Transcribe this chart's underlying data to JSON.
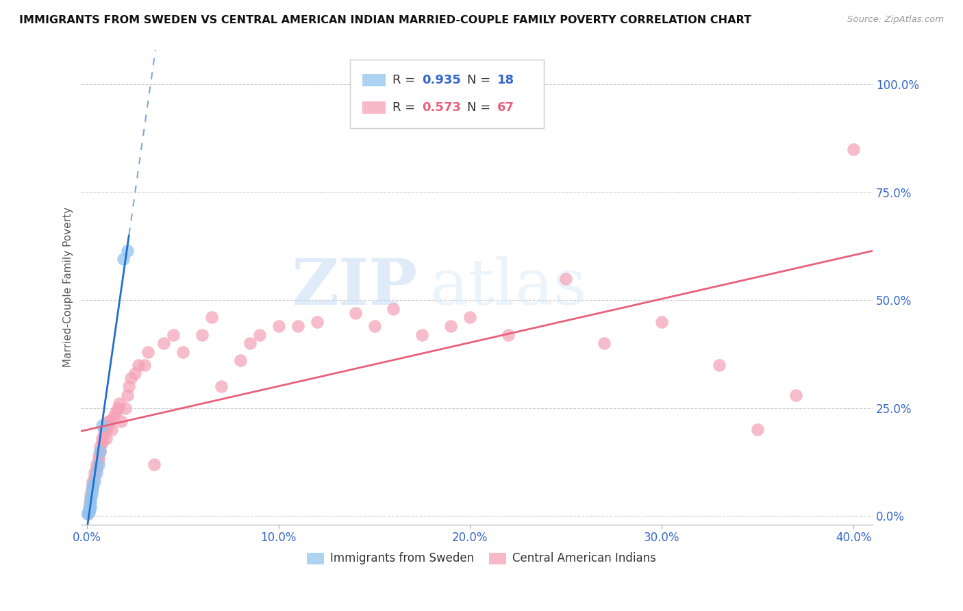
{
  "title": "IMMIGRANTS FROM SWEDEN VS CENTRAL AMERICAN INDIAN MARRIED-COUPLE FAMILY POVERTY CORRELATION CHART",
  "source": "Source: ZipAtlas.com",
  "xlabel_ticks": [
    "0.0%",
    "10.0%",
    "20.0%",
    "30.0%",
    "40.0%"
  ],
  "xlabel_tick_vals": [
    0.0,
    0.1,
    0.2,
    0.3,
    0.4
  ],
  "ylabel": "Married-Couple Family Poverty",
  "ylabel_ticks": [
    "0.0%",
    "25.0%",
    "50.0%",
    "75.0%",
    "100.0%"
  ],
  "ylabel_tick_vals": [
    0.0,
    0.25,
    0.5,
    0.75,
    1.0
  ],
  "xlim": [
    -0.003,
    0.41
  ],
  "ylim": [
    -0.02,
    1.08
  ],
  "blue_R": 0.935,
  "blue_N": 18,
  "pink_R": 0.573,
  "pink_N": 67,
  "legend_label_blue": "Immigrants from Sweden",
  "legend_label_pink": "Central American Indians",
  "blue_color": "#92C5F0",
  "pink_color": "#F5A0B5",
  "blue_line_color": "#1E6FCC",
  "pink_line_color": "#E8607A",
  "watermark_zip": "ZIP",
  "watermark_atlas": "atlas",
  "blue_x": [
    0.0005,
    0.0008,
    0.001,
    0.0012,
    0.0015,
    0.0018,
    0.002,
    0.002,
    0.0025,
    0.003,
    0.003,
    0.004,
    0.005,
    0.006,
    0.007,
    0.008,
    0.019,
    0.021
  ],
  "blue_y": [
    0.005,
    0.01,
    0.01,
    0.015,
    0.02,
    0.02,
    0.03,
    0.04,
    0.05,
    0.06,
    0.07,
    0.08,
    0.1,
    0.12,
    0.15,
    0.21,
    0.595,
    0.615
  ],
  "pink_x": [
    0.0005,
    0.001,
    0.001,
    0.0015,
    0.002,
    0.002,
    0.0025,
    0.003,
    0.003,
    0.004,
    0.004,
    0.005,
    0.005,
    0.006,
    0.006,
    0.007,
    0.007,
    0.008,
    0.008,
    0.009,
    0.009,
    0.01,
    0.01,
    0.011,
    0.011,
    0.012,
    0.013,
    0.014,
    0.015,
    0.016,
    0.017,
    0.018,
    0.02,
    0.021,
    0.022,
    0.023,
    0.025,
    0.027,
    0.03,
    0.032,
    0.035,
    0.04,
    0.045,
    0.05,
    0.06,
    0.065,
    0.07,
    0.08,
    0.085,
    0.09,
    0.1,
    0.11,
    0.12,
    0.14,
    0.15,
    0.16,
    0.175,
    0.19,
    0.2,
    0.22,
    0.25,
    0.27,
    0.3,
    0.33,
    0.35,
    0.37,
    0.4
  ],
  "pink_y": [
    0.005,
    0.01,
    0.02,
    0.03,
    0.04,
    0.05,
    0.06,
    0.07,
    0.08,
    0.09,
    0.1,
    0.11,
    0.12,
    0.13,
    0.14,
    0.15,
    0.16,
    0.17,
    0.18,
    0.19,
    0.2,
    0.18,
    0.2,
    0.21,
    0.22,
    0.22,
    0.2,
    0.23,
    0.24,
    0.25,
    0.26,
    0.22,
    0.25,
    0.28,
    0.3,
    0.32,
    0.33,
    0.35,
    0.35,
    0.38,
    0.12,
    0.4,
    0.42,
    0.38,
    0.42,
    0.46,
    0.3,
    0.36,
    0.4,
    0.42,
    0.44,
    0.44,
    0.45,
    0.47,
    0.44,
    0.48,
    0.42,
    0.44,
    0.46,
    0.42,
    0.55,
    0.4,
    0.45,
    0.35,
    0.2,
    0.28,
    0.85
  ]
}
